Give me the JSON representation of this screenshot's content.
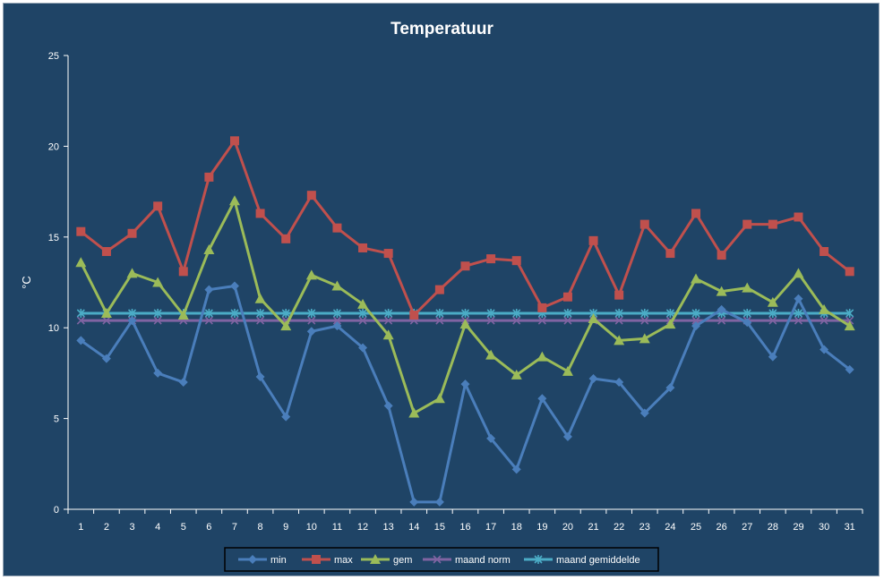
{
  "chart_data": {
    "type": "line",
    "title": "Temperatuur",
    "ylabel": "°C",
    "xlabel": "",
    "ylim": [
      0,
      25
    ],
    "yticks": [
      0,
      5,
      10,
      15,
      20,
      25
    ],
    "grid": false,
    "legend_position": "bottom",
    "categories": [
      "1",
      "2",
      "3",
      "4",
      "5",
      "6",
      "7",
      "8",
      "9",
      "10",
      "11",
      "12",
      "13",
      "14",
      "15",
      "16",
      "17",
      "18",
      "19",
      "20",
      "21",
      "22",
      "23",
      "24",
      "25",
      "26",
      "27",
      "28",
      "29",
      "30",
      "31"
    ],
    "series": [
      {
        "name": "min",
        "color": "#4a7ebb",
        "marker": "diamond",
        "values": [
          9.3,
          8.3,
          10.4,
          7.5,
          7.0,
          12.1,
          12.3,
          7.3,
          5.1,
          9.8,
          10.1,
          8.9,
          5.7,
          0.4,
          0.4,
          6.9,
          3.9,
          2.2,
          6.1,
          4.0,
          7.2,
          7.0,
          5.3,
          6.7,
          10.1,
          11.0,
          10.3,
          8.4,
          11.6,
          8.8,
          7.7
        ]
      },
      {
        "name": "max",
        "color": "#c0504d",
        "marker": "square",
        "values": [
          15.3,
          14.2,
          15.2,
          16.7,
          13.1,
          18.3,
          20.3,
          16.3,
          14.9,
          17.3,
          15.5,
          14.4,
          14.1,
          10.7,
          12.1,
          13.4,
          13.8,
          13.7,
          11.1,
          11.7,
          14.8,
          11.8,
          15.7,
          14.1,
          16.3,
          14.0,
          15.7,
          15.7,
          16.1,
          14.2,
          13.1
        ]
      },
      {
        "name": "gem",
        "color": "#9bbb59",
        "marker": "triangle",
        "values": [
          13.6,
          10.8,
          13.0,
          12.5,
          10.7,
          14.3,
          17.0,
          11.6,
          10.1,
          12.9,
          12.3,
          11.3,
          9.6,
          5.3,
          6.1,
          10.2,
          8.5,
          7.4,
          8.4,
          7.6,
          10.5,
          9.3,
          9.4,
          10.2,
          12.7,
          12.0,
          12.2,
          11.4,
          13.0,
          11.0,
          10.1
        ]
      },
      {
        "name": "maand norm",
        "color": "#8064a2",
        "marker": "x",
        "values": [
          10.4,
          10.4,
          10.4,
          10.4,
          10.4,
          10.4,
          10.4,
          10.4,
          10.4,
          10.4,
          10.4,
          10.4,
          10.4,
          10.4,
          10.4,
          10.4,
          10.4,
          10.4,
          10.4,
          10.4,
          10.4,
          10.4,
          10.4,
          10.4,
          10.4,
          10.4,
          10.4,
          10.4,
          10.4,
          10.4,
          10.4
        ]
      },
      {
        "name": "maand gemiddelde",
        "color": "#4bacc6",
        "marker": "star",
        "values": [
          10.8,
          10.8,
          10.8,
          10.8,
          10.8,
          10.8,
          10.8,
          10.8,
          10.8,
          10.8,
          10.8,
          10.8,
          10.8,
          10.8,
          10.8,
          10.8,
          10.8,
          10.8,
          10.8,
          10.8,
          10.8,
          10.8,
          10.8,
          10.8,
          10.8,
          10.8,
          10.8,
          10.8,
          10.8,
          10.8,
          10.8
        ]
      }
    ]
  }
}
